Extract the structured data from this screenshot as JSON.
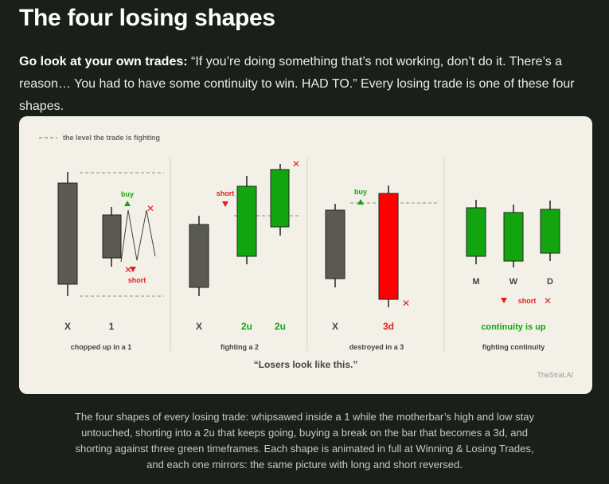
{
  "title": "The four losing shapes",
  "lead": {
    "bold": "Go look at your own trades:",
    "text": " “If you’re doing something that’s not working, don’t do it. There’s a reason… You had to have some continuity to win. HAD TO.” Every losing trade is one of these four shapes."
  },
  "diagram": {
    "legend": "the level the trade is fighting",
    "panels": [
      {
        "label_x": "X",
        "label_1": "1",
        "buy": "buy",
        "short": "short",
        "name": "chopped up in a 1"
      },
      {
        "label_x": "X",
        "label_2": "2u",
        "label_3": "2u",
        "short": "short",
        "name": "fighting a 2"
      },
      {
        "label_x": "X",
        "label_2": "3d",
        "buy": "buy",
        "name": "destroyed in a 3"
      },
      {
        "m": "M",
        "w": "W",
        "d": "D",
        "short": "short",
        "conclusion": "continuity is up",
        "name": "fighting continuity"
      }
    ],
    "quote": "“Losers look like this.”",
    "watermark": "TheStrat.AI"
  },
  "caption": "The four shapes of every losing trade: whipsawed inside a 1 while the motherbar’s high and low stay untouched, shorting into a 2u that keeps going, buying a break on the bar that becomes a 3d, and shorting against three green timeframes. Each shape is animated in full at Winning & Losing Trades, and each one mirrors: the same picture with long and short reversed.",
  "colors": {
    "page_bg": "#1b1f1a",
    "card_bg": "#f3f1e7",
    "neutral_candle": "#5a5a52",
    "green": "#13a50f",
    "red": "#ff0000",
    "level_line": "#8a8a82"
  }
}
